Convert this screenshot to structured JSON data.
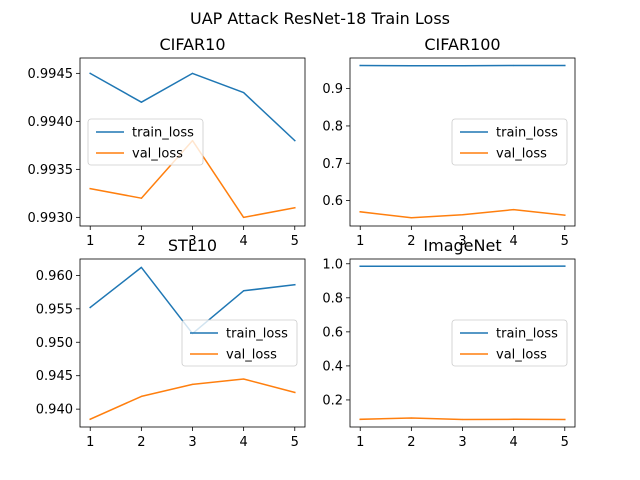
{
  "figure": {
    "title": "UAP Attack ResNet-18 Train Loss"
  },
  "chart_data": [
    {
      "type": "line",
      "title": "CIFAR10",
      "x": [
        1,
        2,
        3,
        4,
        5
      ],
      "xticks": [
        "1",
        "2",
        "3",
        "4",
        "5"
      ],
      "yticks": [
        0.993,
        0.9935,
        0.994,
        0.9945
      ],
      "ytick_labels": [
        "0.9930",
        "0.9935",
        "0.9940",
        "0.9945"
      ],
      "ylim": [
        0.99291,
        0.99466
      ],
      "legend_position": "center-left",
      "series": [
        {
          "name": "train_loss",
          "color": "#1f77b4",
          "values": [
            0.9945,
            0.9942,
            0.9945,
            0.9943,
            0.9938
          ]
        },
        {
          "name": "val_loss",
          "color": "#ff7f0e",
          "values": [
            0.9933,
            0.9932,
            0.9938,
            0.993,
            0.9931
          ]
        }
      ]
    },
    {
      "type": "line",
      "title": "CIFAR100",
      "x": [
        1,
        2,
        3,
        4,
        5
      ],
      "xticks": [
        "1",
        "2",
        "3",
        "4",
        "5"
      ],
      "yticks": [
        0.6,
        0.7,
        0.8,
        0.9
      ],
      "ytick_labels": [
        "0.6",
        "0.7",
        "0.8",
        "0.9"
      ],
      "ylim": [
        0.532,
        0.982
      ],
      "legend_position": "center-right",
      "series": [
        {
          "name": "train_loss",
          "color": "#1f77b4",
          "values": [
            0.962,
            0.961,
            0.961,
            0.962,
            0.962
          ]
        },
        {
          "name": "val_loss",
          "color": "#ff7f0e",
          "values": [
            0.57,
            0.554,
            0.562,
            0.576,
            0.561
          ]
        }
      ]
    },
    {
      "type": "line",
      "title": "STL10",
      "x": [
        1,
        2,
        3,
        4,
        5
      ],
      "xticks": [
        "1",
        "2",
        "3",
        "4",
        "5"
      ],
      "yticks": [
        0.94,
        0.945,
        0.95,
        0.955,
        0.96
      ],
      "ytick_labels": [
        "0.940",
        "0.945",
        "0.950",
        "0.955",
        "0.960"
      ],
      "ylim": [
        0.93733,
        0.96245
      ],
      "legend_position": "center-right",
      "series": [
        {
          "name": "train_loss",
          "color": "#1f77b4",
          "values": [
            0.9552,
            0.9612,
            0.9513,
            0.9577,
            0.9586
          ]
        },
        {
          "name": "val_loss",
          "color": "#ff7f0e",
          "values": [
            0.9385,
            0.9419,
            0.9437,
            0.9445,
            0.9425
          ]
        }
      ]
    },
    {
      "type": "line",
      "title": "ImageNet",
      "x": [
        1,
        2,
        3,
        4,
        5
      ],
      "xticks": [
        "1",
        "2",
        "3",
        "4",
        "5"
      ],
      "yticks": [
        0.2,
        0.4,
        0.6,
        0.8,
        1.0
      ],
      "ytick_labels": [
        "0.2",
        "0.4",
        "0.6",
        "0.8",
        "1.0"
      ],
      "ylim": [
        0.041,
        1.028
      ],
      "legend_position": "center-right",
      "series": [
        {
          "name": "train_loss",
          "color": "#1f77b4",
          "values": [
            0.985,
            0.985,
            0.985,
            0.985,
            0.986
          ]
        },
        {
          "name": "val_loss",
          "color": "#ff7f0e",
          "values": [
            0.086,
            0.094,
            0.085,
            0.086,
            0.085
          ]
        }
      ]
    }
  ]
}
